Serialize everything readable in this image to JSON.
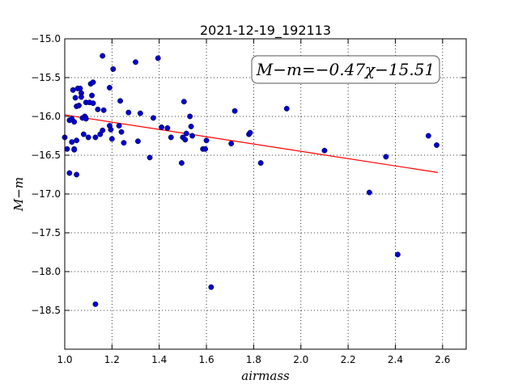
{
  "chart_data": {
    "type": "scatter",
    "title": "2021-12-19_192113",
    "xlabel": "airmass",
    "ylabel": "M−m",
    "xlim": [
      1.0,
      2.7
    ],
    "ylim": [
      -19.0,
      -15.0
    ],
    "y_inverted": true,
    "grid": true,
    "annotation": "M−m=−0.47χ−15.51",
    "annotation_position": "top-right",
    "x_ticks": [
      1.0,
      1.2,
      1.4,
      1.6,
      1.8,
      2.0,
      2.2,
      2.4,
      2.6
    ],
    "x_tick_labels": [
      "1.0",
      "1.2",
      "1.4",
      "1.6",
      "1.8",
      "2.0",
      "2.2",
      "2.4",
      "2.6"
    ],
    "y_ticks": [
      -15.0,
      -15.5,
      -16.0,
      -16.5,
      -17.0,
      -17.5,
      -18.0,
      -18.5
    ],
    "y_tick_labels": [
      "−15.0",
      "−15.5",
      "−16.0",
      "−16.5",
      "−17.0",
      "−17.5",
      "−18.0",
      "−18.5"
    ],
    "fit_line": {
      "slope": -0.47,
      "intercept": -15.51,
      "x_range": [
        1.0,
        2.58
      ],
      "color": "#ff0000"
    },
    "point_color": "#0000cc",
    "points": [
      [
        1.0,
        -16.27
      ],
      [
        1.01,
        -16.42
      ],
      [
        1.02,
        -16.05
      ],
      [
        1.02,
        -16.73
      ],
      [
        1.03,
        -16.33
      ],
      [
        1.03,
        -16.03
      ],
      [
        1.035,
        -15.66
      ],
      [
        1.04,
        -16.07
      ],
      [
        1.04,
        -16.42
      ],
      [
        1.04,
        -16.43
      ],
      [
        1.045,
        -15.76
      ],
      [
        1.05,
        -15.87
      ],
      [
        1.05,
        -16.75
      ],
      [
        1.05,
        -16.31
      ],
      [
        1.055,
        -15.64
      ],
      [
        1.06,
        -15.86
      ],
      [
        1.065,
        -15.64
      ],
      [
        1.07,
        -15.7
      ],
      [
        1.07,
        -15.75
      ],
      [
        1.075,
        -16.02
      ],
      [
        1.08,
        -16.23
      ],
      [
        1.085,
        -16.0
      ],
      [
        1.09,
        -15.82
      ],
      [
        1.09,
        -16.03
      ],
      [
        1.1,
        -16.27
      ],
      [
        1.105,
        -15.82
      ],
      [
        1.11,
        -15.58
      ],
      [
        1.115,
        -15.73
      ],
      [
        1.12,
        -15.56
      ],
      [
        1.12,
        -15.83
      ],
      [
        1.13,
        -18.42
      ],
      [
        1.13,
        -16.27
      ],
      [
        1.14,
        -15.91
      ],
      [
        1.15,
        -16.23
      ],
      [
        1.16,
        -15.22
      ],
      [
        1.16,
        -16.18
      ],
      [
        1.165,
        -15.92
      ],
      [
        1.19,
        -15.63
      ],
      [
        1.19,
        -16.12
      ],
      [
        1.195,
        -16.17
      ],
      [
        1.2,
        -16.29
      ],
      [
        1.205,
        -15.39
      ],
      [
        1.23,
        -16.12
      ],
      [
        1.235,
        -15.8
      ],
      [
        1.24,
        -16.2
      ],
      [
        1.25,
        -16.34
      ],
      [
        1.27,
        -15.95
      ],
      [
        1.3,
        -15.3
      ],
      [
        1.31,
        -16.32
      ],
      [
        1.32,
        -15.96
      ],
      [
        1.36,
        -16.53
      ],
      [
        1.375,
        -16.02
      ],
      [
        1.395,
        -15.25
      ],
      [
        1.41,
        -16.14
      ],
      [
        1.435,
        -16.15
      ],
      [
        1.45,
        -16.27
      ],
      [
        1.495,
        -16.6
      ],
      [
        1.5,
        -16.27
      ],
      [
        1.505,
        -15.81
      ],
      [
        1.51,
        -16.3
      ],
      [
        1.515,
        -16.22
      ],
      [
        1.53,
        -16.0
      ],
      [
        1.535,
        -16.13
      ],
      [
        1.54,
        -16.25
      ],
      [
        1.585,
        -16.42
      ],
      [
        1.595,
        -16.42
      ],
      [
        1.6,
        -16.31
      ],
      [
        1.62,
        -18.2
      ],
      [
        1.705,
        -16.35
      ],
      [
        1.72,
        -15.93
      ],
      [
        1.78,
        -16.23
      ],
      [
        1.785,
        -16.21
      ],
      [
        1.83,
        -16.6
      ],
      [
        1.94,
        -15.9
      ],
      [
        2.1,
        -16.44
      ],
      [
        2.29,
        -16.98
      ],
      [
        2.36,
        -16.52
      ],
      [
        2.41,
        -17.78
      ],
      [
        2.54,
        -16.25
      ],
      [
        2.575,
        -16.37
      ]
    ]
  }
}
